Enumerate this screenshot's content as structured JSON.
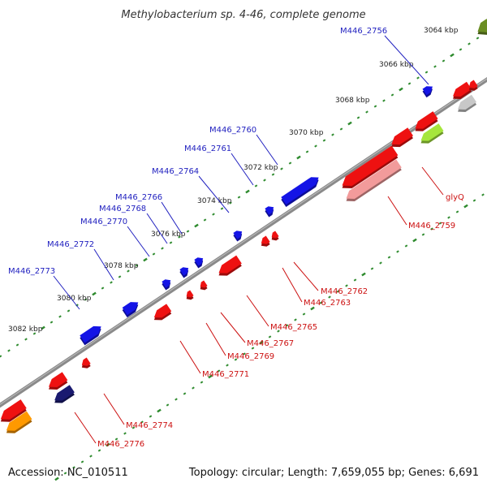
{
  "title": "Methylobacterium sp. 4-46, complete genome",
  "footer": {
    "accession": "Accession: NC_010511",
    "summary": "Topology: circular; Length: 7,659,055 bp; Genes: 6,691"
  },
  "kbp_ticks": [
    "3064 kbp",
    "3066 kbp",
    "3068 kbp",
    "3070 kbp",
    "3072 kbp",
    "3074 kbp",
    "3076 kbp",
    "3078 kbp",
    "3080 kbp",
    "3082 kbp"
  ],
  "forward_genes": [
    "M446_2756",
    "M446_2760",
    "M446_2761",
    "M446_2764",
    "M446_2766",
    "M446_2768",
    "M446_2770",
    "M446_2772",
    "M446_2773"
  ],
  "reverse_genes": [
    "glyQ",
    "M446_2759",
    "M446_2762",
    "M446_2763",
    "M446_2765",
    "M446_2767",
    "M446_2769",
    "M446_2771",
    "M446_2774",
    "M446_2776"
  ],
  "colors": {
    "forward": "#1414e6",
    "reverse": "#ee1111",
    "reverse_light": "#f29b9b",
    "backbone": "#8a8a8a",
    "tick": "#2e8b2e",
    "navy": "#1a1a70",
    "gray": "#c8c8c8",
    "lime": "#a6e63c",
    "olive": "#6b8e23",
    "orange": "#ff9900"
  }
}
